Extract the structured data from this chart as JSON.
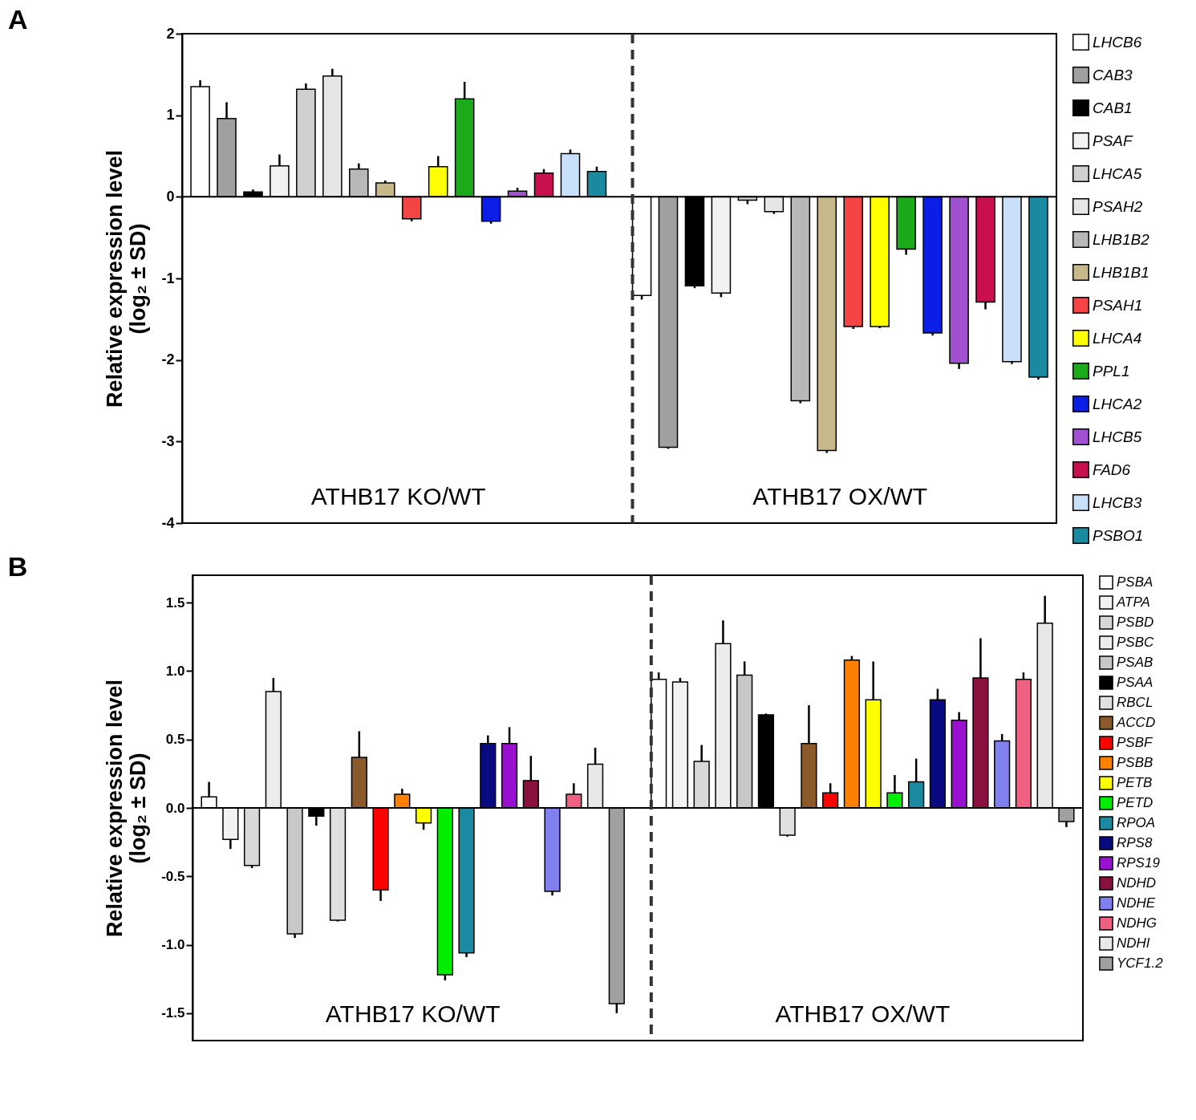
{
  "chart_data": [
    {
      "type": "bar",
      "title": "A",
      "ylabel": "Relative expression level\n(log₂ ± SD)",
      "categories": [
        "ATHB17 KO/WT",
        "ATHB17 OX/WT"
      ],
      "ylim": [
        -4,
        2
      ],
      "yticks": [
        -4,
        -3,
        -2,
        -1,
        0,
        1,
        2
      ],
      "legend": "right",
      "ref_lines": [
        {
          "axis": "y",
          "value": 0
        },
        {
          "axis": "x",
          "value": "ATHB17 OX/WT",
          "line_style": "dashed"
        }
      ],
      "series": [
        {
          "name": "LHCB6",
          "color": "#ffffff",
          "values": [
            1.35,
            -1.21
          ],
          "errors": [
            0.08,
            0.05
          ]
        },
        {
          "name": "CAB3",
          "color": "#a0a0a0",
          "values": [
            0.96,
            -3.07
          ],
          "errors": [
            0.2,
            0.02
          ]
        },
        {
          "name": "CAB1",
          "color": "#000000",
          "values": [
            0.06,
            -1.09
          ],
          "errors": [
            0.03,
            0.03
          ]
        },
        {
          "name": "PSAF",
          "color": "#f2f2f2",
          "values": [
            0.38,
            -1.18
          ],
          "errors": [
            0.14,
            0.05
          ]
        },
        {
          "name": "LHCA5",
          "color": "#d0d0d0",
          "values": [
            1.32,
            -0.04
          ],
          "errors": [
            0.07,
            0.05
          ]
        },
        {
          "name": "PSAH2",
          "color": "#e6e6e6",
          "values": [
            1.48,
            -0.18
          ],
          "errors": [
            0.09,
            0.03
          ]
        },
        {
          "name": "LHB1B2",
          "color": "#b8b8b8",
          "values": [
            0.34,
            -2.5
          ],
          "errors": [
            0.07,
            0.03
          ]
        },
        {
          "name": "LHB1B1",
          "color": "#c8b98a",
          "values": [
            0.17,
            -3.11
          ],
          "errors": [
            0.03,
            0.03
          ]
        },
        {
          "name": "PSAH1",
          "color": "#f44444",
          "values": [
            -0.27,
            -1.59
          ],
          "errors": [
            0.03,
            0.03
          ]
        },
        {
          "name": "LHCA4",
          "color": "#ffff00",
          "values": [
            0.37,
            -1.59
          ],
          "errors": [
            0.13,
            0.02
          ]
        },
        {
          "name": "PPL1",
          "color": "#1aaa1a",
          "values": [
            1.2,
            -0.64
          ],
          "errors": [
            0.21,
            0.07
          ]
        },
        {
          "name": "LHCA2",
          "color": "#0a1ee6",
          "values": [
            -0.3,
            -1.67
          ],
          "errors": [
            0.03,
            0.03
          ]
        },
        {
          "name": "LHCB5",
          "color": "#a050d0",
          "values": [
            0.07,
            -2.04
          ],
          "errors": [
            0.04,
            0.07
          ]
        },
        {
          "name": "FAD6",
          "color": "#c8104e",
          "values": [
            0.29,
            -1.29
          ],
          "errors": [
            0.05,
            0.09
          ]
        },
        {
          "name": "LHCB3",
          "color": "#c8e0fa",
          "values": [
            0.53,
            -2.02
          ],
          "errors": [
            0.05,
            0.03
          ]
        },
        {
          "name": "PSBO1",
          "color": "#1a8aa0",
          "values": [
            0.31,
            -2.21
          ],
          "errors": [
            0.06,
            0.03
          ]
        }
      ]
    },
    {
      "type": "bar",
      "title": "B",
      "ylabel": "Relative expression level\n(log₂ ± SD)",
      "categories": [
        "ATHB17 KO/WT",
        "ATHB17 OX/WT"
      ],
      "ylim": [
        -1.7,
        1.7
      ],
      "yticks": [
        {
          "value": -1.5,
          "label": "-1.5"
        },
        {
          "value": -1,
          "label": "-1.0"
        },
        {
          "value": -0.5,
          "label": "-0.5"
        },
        {
          "value": 0,
          "label": "0.0"
        },
        {
          "value": 0.5,
          "label": "0.5"
        },
        {
          "value": 1,
          "label": "1.0"
        },
        {
          "value": 1.5,
          "label": "1.5"
        }
      ],
      "legend": "right",
      "ref_lines": [
        {
          "axis": "y",
          "value": 0
        },
        {
          "axis": "x",
          "value": "ATHB17 OX/WT",
          "line_style": "dashed"
        }
      ],
      "series": [
        {
          "name": "PSBA",
          "color": "#ffffff",
          "values": [
            0.08,
            0.94
          ],
          "errors": [
            0.11,
            0.05
          ]
        },
        {
          "name": "ATPA",
          "color": "#f2f2f2",
          "values": [
            -0.23,
            0.92
          ],
          "errors": [
            0.07,
            0.03
          ]
        },
        {
          "name": "PSBD",
          "color": "#d8d8d8",
          "values": [
            -0.42,
            0.34
          ],
          "errors": [
            0.02,
            0.12
          ]
        },
        {
          "name": "PSBC",
          "color": "#ececec",
          "values": [
            0.85,
            1.2
          ],
          "errors": [
            0.1,
            0.17
          ]
        },
        {
          "name": "PSAB",
          "color": "#c8c8c8",
          "values": [
            -0.92,
            0.97
          ],
          "errors": [
            0.03,
            0.1
          ]
        },
        {
          "name": "PSAA",
          "color": "#000000",
          "values": [
            -0.06,
            0.68
          ],
          "errors": [
            0.07,
            0.01
          ]
        },
        {
          "name": "RBCL",
          "color": "#e0e0e0",
          "values": [
            -0.82,
            -0.2
          ],
          "errors": [
            0.01,
            0.01
          ]
        },
        {
          "name": "ACCD",
          "color": "#8b5a2b",
          "values": [
            0.37,
            0.47
          ],
          "errors": [
            0.19,
            0.28
          ]
        },
        {
          "name": "PSBF",
          "color": "#ff0000",
          "values": [
            -0.6,
            0.11
          ],
          "errors": [
            0.08,
            0.07
          ]
        },
        {
          "name": "PSBB",
          "color": "#ff8000",
          "values": [
            0.1,
            1.08
          ],
          "errors": [
            0.04,
            0.03
          ]
        },
        {
          "name": "PETB",
          "color": "#ffff00",
          "values": [
            -0.11,
            0.79
          ],
          "errors": [
            0.05,
            0.28
          ]
        },
        {
          "name": "PETD",
          "color": "#00ee00",
          "values": [
            -1.22,
            0.11
          ],
          "errors": [
            0.04,
            0.13
          ]
        },
        {
          "name": "RPOA",
          "color": "#1a8aa0",
          "values": [
            -1.06,
            0.19
          ],
          "errors": [
            0.03,
            0.17
          ]
        },
        {
          "name": "RPS8",
          "color": "#0a0a80",
          "values": [
            0.47,
            0.79
          ],
          "errors": [
            0.06,
            0.08
          ]
        },
        {
          "name": "RPS19",
          "color": "#9a10d0",
          "values": [
            0.47,
            0.64
          ],
          "errors": [
            0.12,
            0.06
          ]
        },
        {
          "name": "NDHD",
          "color": "#8a1040",
          "values": [
            0.2,
            0.95
          ],
          "errors": [
            0.18,
            0.29
          ]
        },
        {
          "name": "NDHE",
          "color": "#8080ee",
          "values": [
            -0.61,
            0.49
          ],
          "errors": [
            0.03,
            0.05
          ]
        },
        {
          "name": "NDHG",
          "color": "#f06080",
          "values": [
            0.1,
            0.94
          ],
          "errors": [
            0.08,
            0.05
          ]
        },
        {
          "name": "NDHI",
          "color": "#e8e8e8",
          "values": [
            0.32,
            1.35
          ],
          "errors": [
            0.12,
            0.2
          ]
        },
        {
          "name": "YCF1.2",
          "color": "#a0a0a0",
          "values": [
            -1.43,
            -0.1
          ],
          "errors": [
            0.07,
            0.04
          ]
        }
      ]
    }
  ]
}
